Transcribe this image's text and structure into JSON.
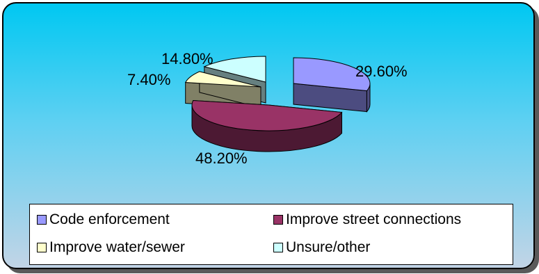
{
  "chart_data": {
    "type": "pie",
    "title": "",
    "slices": [
      {
        "label": "Code enforcement",
        "value": 29.6,
        "display": "29.60%",
        "color": "#9999ff",
        "side_color": "#4c4c80"
      },
      {
        "label": "Improve street connections",
        "value": 48.2,
        "display": "48.20%",
        "color": "#993366",
        "side_color": "#4c1933"
      },
      {
        "label": "Improve water/sewer",
        "value": 7.4,
        "display": "7.40%",
        "color": "#ffffcc",
        "side_color": "#808066"
      },
      {
        "label": "Unsure/other",
        "value": 14.8,
        "display": "14.80%",
        "color": "#ccffff",
        "side_color": "#668080"
      }
    ],
    "legend_position": "bottom",
    "exploded": true,
    "three_d": true
  },
  "legend": {
    "items": [
      {
        "label": "Code enforcement",
        "color": "#9999ff"
      },
      {
        "label": "Improve street connections",
        "color": "#993366"
      },
      {
        "label": "Improve water/sewer",
        "color": "#ffffcc"
      },
      {
        "label": "Unsure/other",
        "color": "#ccffff"
      }
    ]
  }
}
